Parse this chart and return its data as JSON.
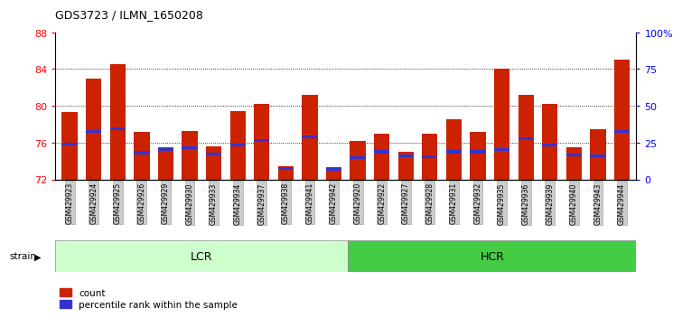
{
  "title": "GDS3723 / ILMN_1650208",
  "samples": [
    "GSM429923",
    "GSM429924",
    "GSM429925",
    "GSM429926",
    "GSM429929",
    "GSM429930",
    "GSM429933",
    "GSM429934",
    "GSM429937",
    "GSM429938",
    "GSM429941",
    "GSM429942",
    "GSM429920",
    "GSM429922",
    "GSM429927",
    "GSM429928",
    "GSM429931",
    "GSM429932",
    "GSM429935",
    "GSM429936",
    "GSM429939",
    "GSM429940",
    "GSM429943",
    "GSM429944"
  ],
  "count_values": [
    79.3,
    83.0,
    84.5,
    77.2,
    75.5,
    77.3,
    75.6,
    79.4,
    80.2,
    73.4,
    81.2,
    73.3,
    76.2,
    77.0,
    75.0,
    77.0,
    78.5,
    77.2,
    84.0,
    81.2,
    80.2,
    75.5,
    77.5,
    85.0
  ],
  "percentile_values": [
    75.8,
    77.2,
    77.5,
    74.9,
    75.2,
    75.4,
    74.8,
    75.7,
    76.2,
    73.2,
    76.6,
    73.1,
    74.4,
    75.0,
    74.6,
    74.5,
    75.0,
    75.0,
    75.2,
    76.4,
    75.7,
    74.7,
    74.6,
    77.2
  ],
  "lcr_count": 12,
  "hcr_count": 12,
  "ylim_left": [
    72,
    88
  ],
  "yticks_left": [
    72,
    76,
    80,
    84,
    88
  ],
  "ylim_right": [
    0,
    100
  ],
  "yticks_right": [
    0,
    25,
    50,
    75,
    100
  ],
  "ytick_labels_right": [
    "0",
    "25",
    "50",
    "75",
    "100%"
  ],
  "bar_color": "#cc2200",
  "percentile_color": "#3333cc",
  "lcr_color": "#ccffcc",
  "hcr_color": "#44cc44",
  "tick_bg_color": "#cccccc",
  "legend_count": "count",
  "legend_percentile": "percentile rank within the sample",
  "strain_label": "strain"
}
